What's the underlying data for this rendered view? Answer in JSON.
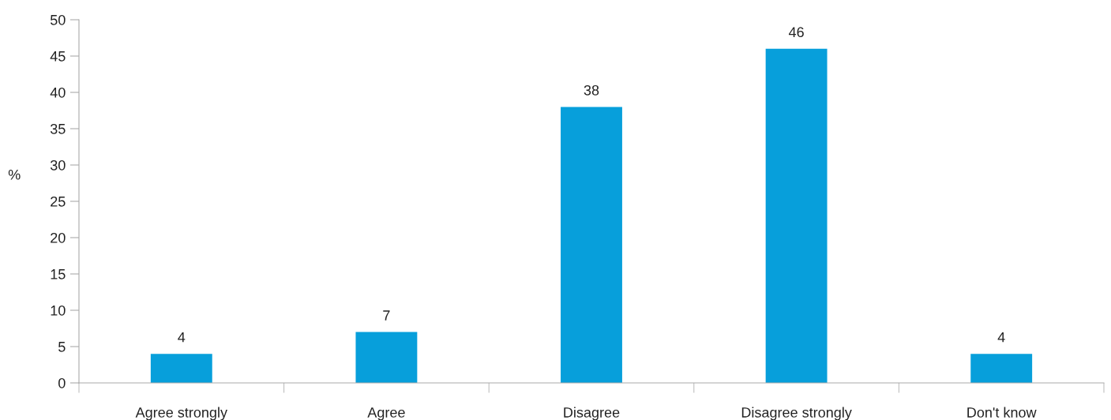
{
  "chart_data": {
    "type": "bar",
    "categories": [
      "Agree strongly",
      "Agree",
      "Disagree",
      "Disagree strongly",
      "Don't know"
    ],
    "values": [
      4,
      7,
      38,
      46,
      4
    ],
    "color": "#079fdb",
    "ylabel": "%",
    "ylim": [
      0,
      50
    ],
    "yticks": [
      0,
      5,
      10,
      15,
      20,
      25,
      30,
      35,
      40,
      45,
      50
    ],
    "data_labels": true,
    "grid": false,
    "legend": false
  }
}
